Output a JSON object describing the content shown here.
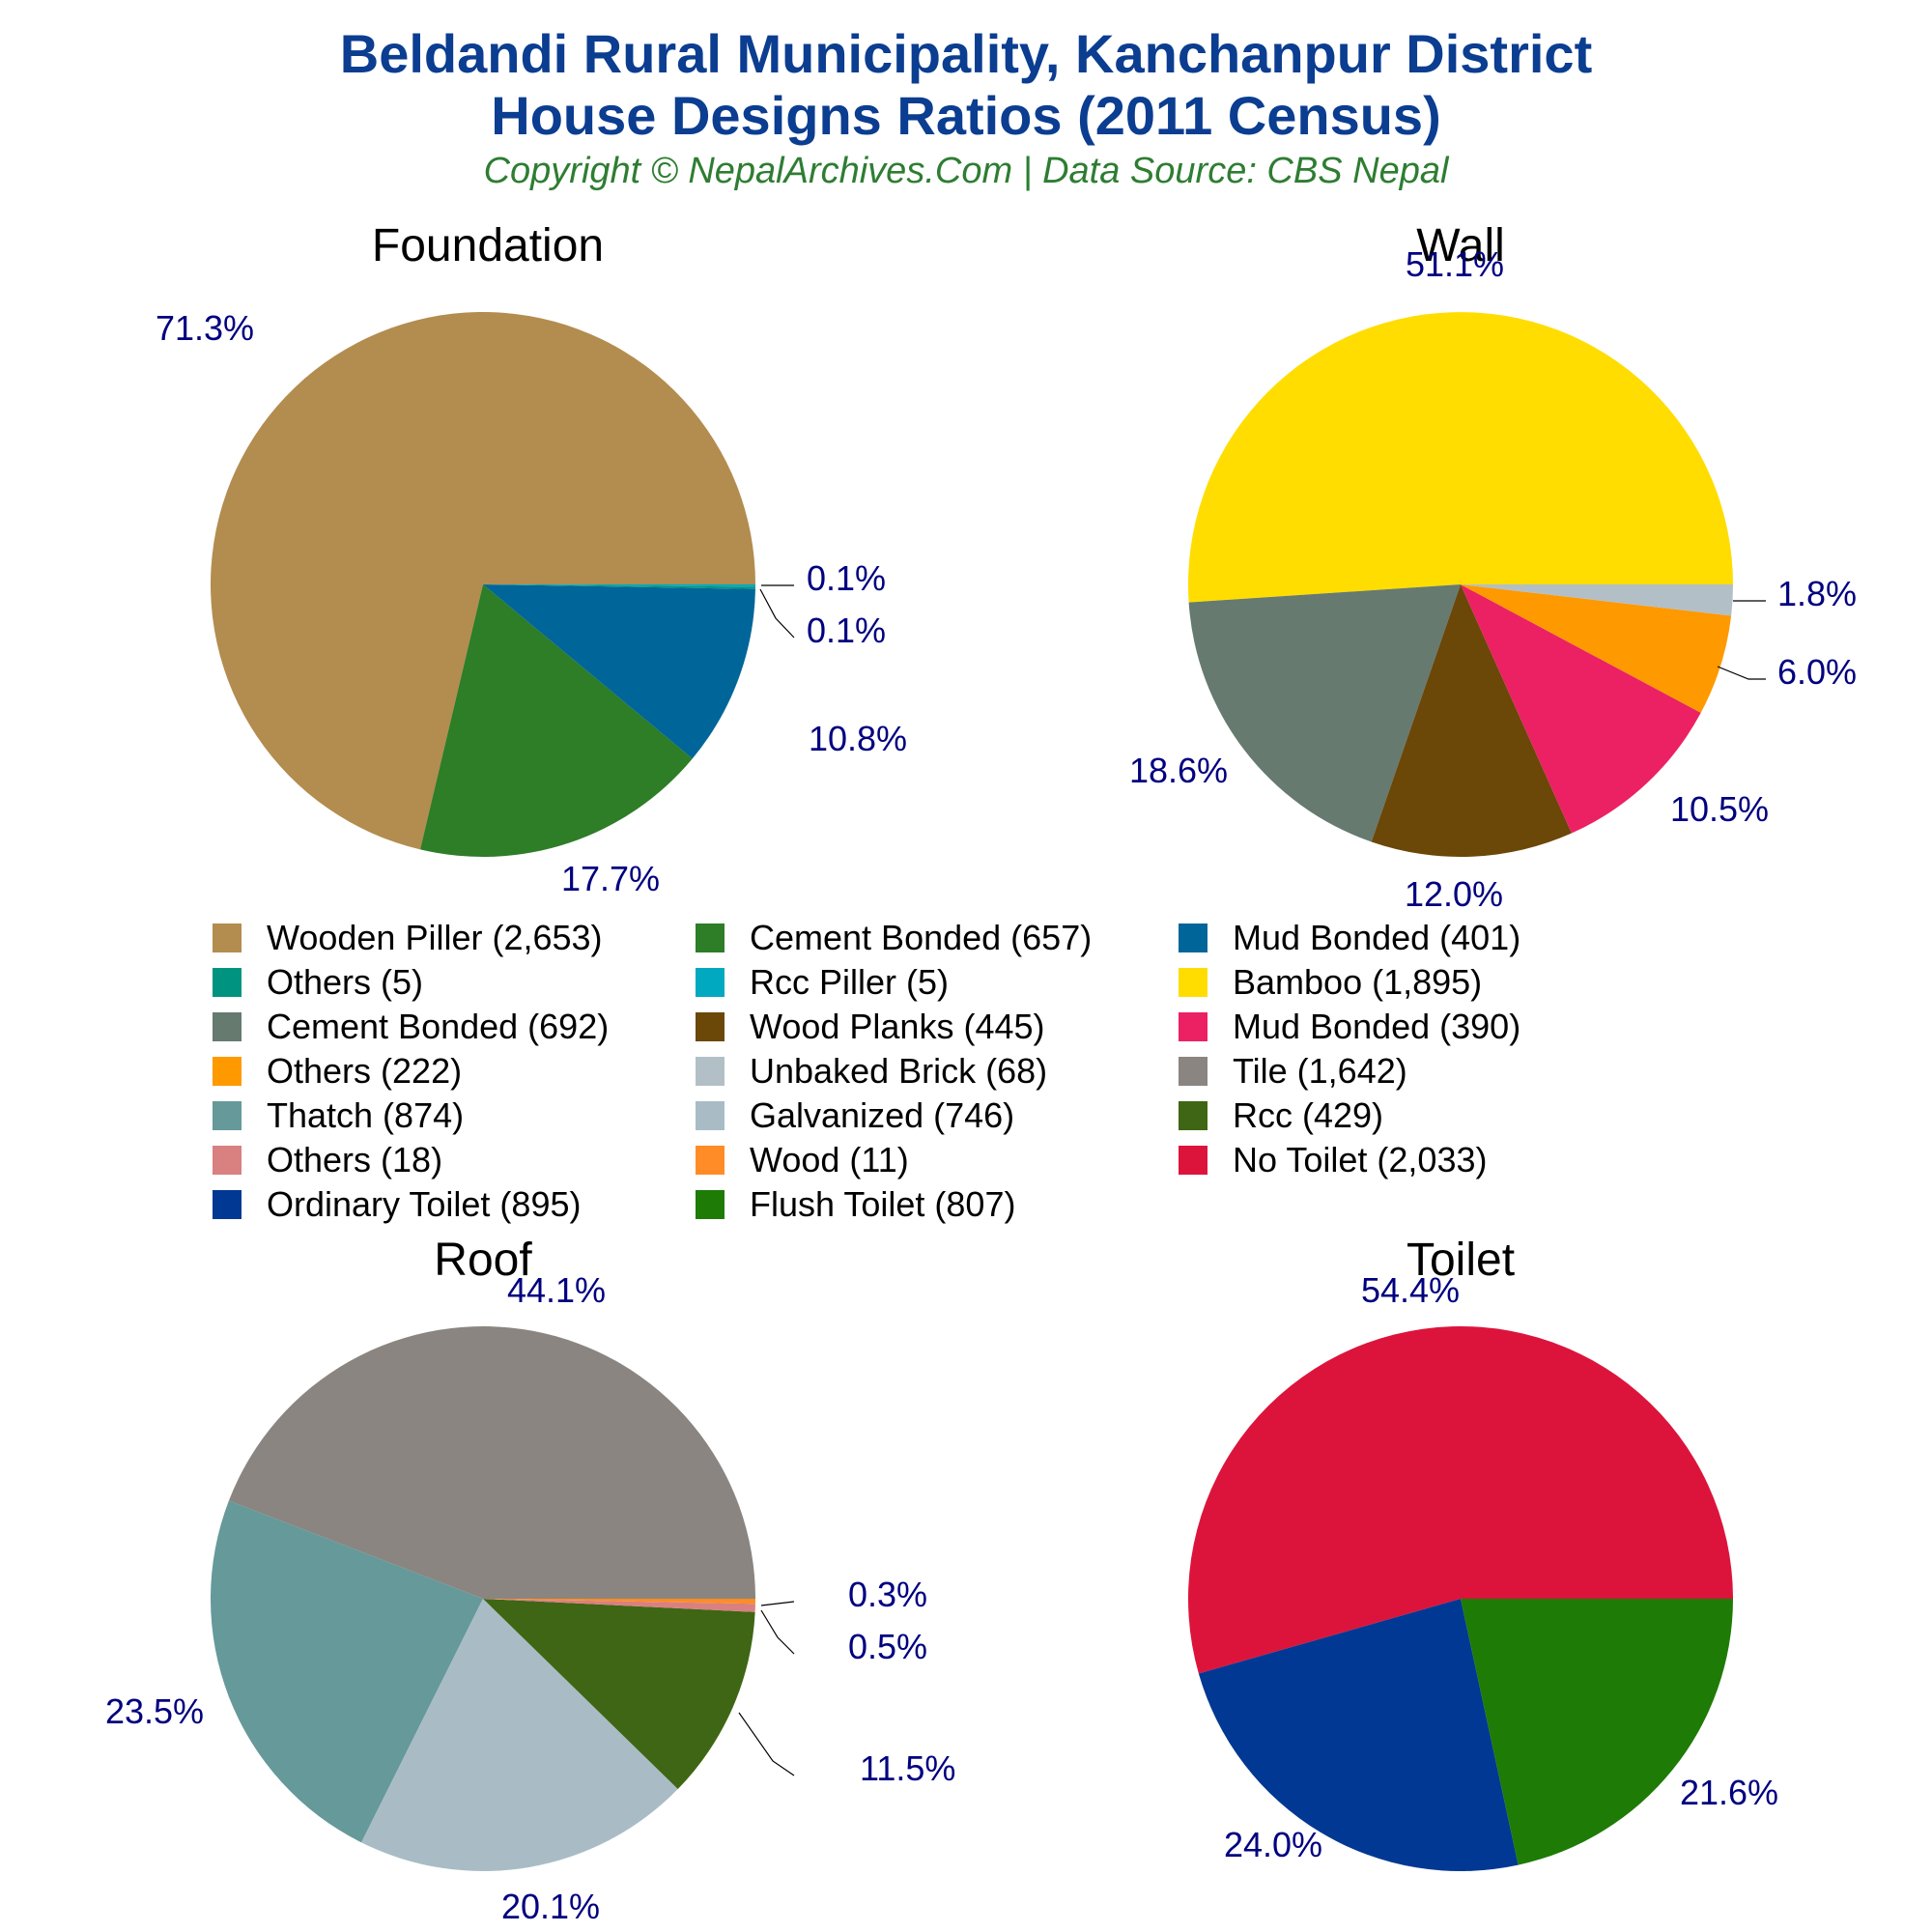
{
  "header": {
    "title_line1": "Beldandi Rural Municipality, Kanchanpur District",
    "title_line2": "House Designs Ratios (2011 Census)",
    "copyright": "Copyright © NepalArchives.Com | Data Source: CBS Nepal"
  },
  "colors": {
    "title": "#0b3d91",
    "copyright": "#2e7d32",
    "pct_label": "#000080"
  },
  "chart_data": [
    {
      "type": "pie",
      "title": "Foundation",
      "slices": [
        {
          "label": "Wooden Piller",
          "value": 2653,
          "pct": "71.3%",
          "color": "#b38c4f"
        },
        {
          "label": "Cement Bonded",
          "value": 657,
          "pct": "17.7%",
          "color": "#2e7d27"
        },
        {
          "label": "Mud Bonded",
          "value": 401,
          "pct": "10.8%",
          "color": "#006699"
        },
        {
          "label": "Others",
          "value": 5,
          "pct": "0.1%",
          "color": "#009480"
        },
        {
          "label": "Rcc Piller",
          "value": 5,
          "pct": "0.1%",
          "color": "#00a8c0"
        }
      ]
    },
    {
      "type": "pie",
      "title": "Wall",
      "slices": [
        {
          "label": "Bamboo",
          "value": 1895,
          "pct": "51.1%",
          "color": "#ffdd00"
        },
        {
          "label": "Cement Bonded",
          "value": 692,
          "pct": "18.6%",
          "color": "#667a70"
        },
        {
          "label": "Wood Planks",
          "value": 445,
          "pct": "12.0%",
          "color": "#6b4708"
        },
        {
          "label": "Mud Bonded",
          "value": 390,
          "pct": "10.5%",
          "color": "#eb2163"
        },
        {
          "label": "Others",
          "value": 222,
          "pct": "6.0%",
          "color": "#ff9900"
        },
        {
          "label": "Unbaked Brick",
          "value": 68,
          "pct": "1.8%",
          "color": "#b3bfc6"
        }
      ]
    },
    {
      "type": "pie",
      "title": "Roof",
      "slices": [
        {
          "label": "Tile",
          "value": 1642,
          "pct": "44.1%",
          "color": "#8a8580"
        },
        {
          "label": "Thatch",
          "value": 874,
          "pct": "23.5%",
          "color": "#669999"
        },
        {
          "label": "Galvanized",
          "value": 746,
          "pct": "20.1%",
          "color": "#a9bcc6"
        },
        {
          "label": "Rcc",
          "value": 429,
          "pct": "11.5%",
          "color": "#3f6614"
        },
        {
          "label": "Others",
          "value": 18,
          "pct": "0.5%",
          "color": "#d98080"
        },
        {
          "label": "Wood",
          "value": 11,
          "pct": "0.3%",
          "color": "#ff8c26"
        }
      ]
    },
    {
      "type": "pie",
      "title": "Toilet",
      "slices": [
        {
          "label": "No Toilet",
          "value": 2033,
          "pct": "54.4%",
          "color": "#dc143c"
        },
        {
          "label": "Ordinary Toilet",
          "value": 895,
          "pct": "24.0%",
          "color": "#003893"
        },
        {
          "label": "Flush Toilet",
          "value": 807,
          "pct": "21.6%",
          "color": "#1e7b06"
        }
      ]
    }
  ],
  "legend": [
    {
      "label": "Wooden Piller (2,653)",
      "color": "#b38c4f"
    },
    {
      "label": "Cement Bonded (657)",
      "color": "#2e7d27"
    },
    {
      "label": "Mud Bonded (401)",
      "color": "#006699"
    },
    {
      "label": "Others (5)",
      "color": "#009480"
    },
    {
      "label": "Rcc Piller (5)",
      "color": "#00a8c0"
    },
    {
      "label": "Bamboo (1,895)",
      "color": "#ffdd00"
    },
    {
      "label": "Cement Bonded (692)",
      "color": "#667a70"
    },
    {
      "label": "Wood Planks (445)",
      "color": "#6b4708"
    },
    {
      "label": "Mud Bonded (390)",
      "color": "#eb2163"
    },
    {
      "label": "Others (222)",
      "color": "#ff9900"
    },
    {
      "label": "Unbaked Brick (68)",
      "color": "#b3bfc6"
    },
    {
      "label": "Tile (1,642)",
      "color": "#8a8580"
    },
    {
      "label": "Thatch (874)",
      "color": "#669999"
    },
    {
      "label": "Galvanized (746)",
      "color": "#a9bcc6"
    },
    {
      "label": "Rcc (429)",
      "color": "#3f6614"
    },
    {
      "label": "Others (18)",
      "color": "#d98080"
    },
    {
      "label": "Wood (11)",
      "color": "#ff8c26"
    },
    {
      "label": "No Toilet (2,033)",
      "color": "#dc143c"
    },
    {
      "label": "Ordinary Toilet (895)",
      "color": "#003893"
    },
    {
      "label": "Flush Toilet (807)",
      "color": "#1e7b06"
    }
  ]
}
